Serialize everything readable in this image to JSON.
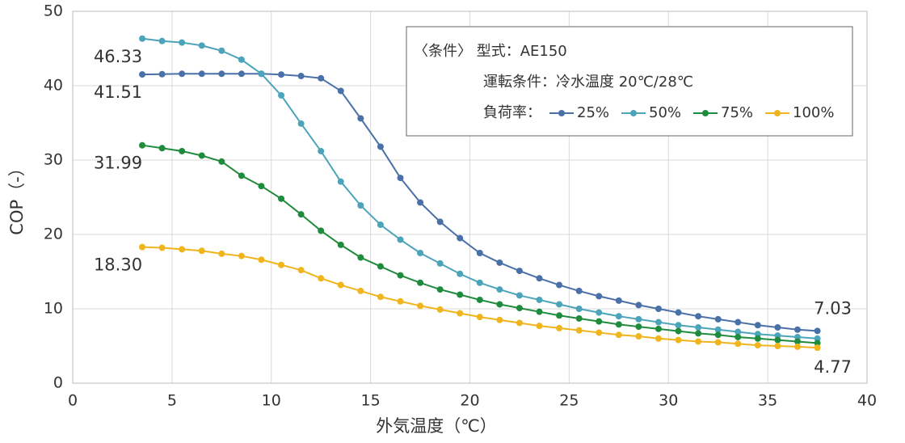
{
  "chart_data": {
    "type": "line",
    "x_label": "外気温度（℃）",
    "y_label": "COP（-）",
    "xlim": [
      0,
      40
    ],
    "xticks": [
      0,
      5,
      10,
      15,
      20,
      25,
      30,
      35,
      40
    ],
    "ylim": [
      0,
      50
    ],
    "yticks": [
      0,
      10,
      20,
      30,
      40,
      50
    ],
    "grid": true,
    "conditions": [
      "〈条件〉 型式：AE150",
      "運転条件：冷水温度 20℃/28℃",
      "負荷率："
    ],
    "x": [
      3.5,
      4.5,
      5.5,
      6.5,
      7.5,
      8.5,
      9.5,
      10.5,
      11.5,
      12.5,
      13.5,
      14.5,
      15.5,
      16.5,
      17.5,
      18.5,
      19.5,
      20.5,
      21.5,
      22.5,
      23.5,
      24.5,
      25.5,
      26.5,
      27.5,
      28.5,
      29.5,
      30.5,
      31.5,
      32.5,
      33.5,
      34.5,
      35.5,
      36.5,
      37.5
    ],
    "series": [
      {
        "name": "25%",
        "color": "#4a70a8",
        "values": [
          41.51,
          41.55,
          41.6,
          41.6,
          41.6,
          41.6,
          41.6,
          41.5,
          41.3,
          41.0,
          39.3,
          35.6,
          31.8,
          27.6,
          24.3,
          21.7,
          19.5,
          17.5,
          16.2,
          15.1,
          14.1,
          13.2,
          12.4,
          11.7,
          11.1,
          10.5,
          10.0,
          9.5,
          9.0,
          8.6,
          8.2,
          7.8,
          7.5,
          7.2,
          7.03
        ],
        "value_labels": [
          "41.51",
          null,
          null,
          null,
          null,
          null,
          null,
          null,
          null,
          null,
          null,
          null,
          null,
          null,
          null,
          null,
          null,
          null,
          null,
          null,
          null,
          null,
          null,
          null,
          null,
          null,
          null,
          null,
          null,
          null,
          null,
          null,
          null,
          null,
          "7.03"
        ]
      },
      {
        "name": "50%",
        "color": "#4ba4b9",
        "values": [
          46.33,
          46.0,
          45.8,
          45.4,
          44.7,
          43.5,
          41.6,
          38.7,
          34.9,
          31.2,
          27.1,
          23.9,
          21.3,
          19.3,
          17.5,
          16.1,
          14.7,
          13.5,
          12.6,
          11.8,
          11.2,
          10.6,
          10.0,
          9.5,
          9.0,
          8.6,
          8.2,
          7.8,
          7.5,
          7.2,
          6.9,
          6.6,
          6.4,
          6.2,
          6.0
        ],
        "value_labels": [
          "46.33",
          null,
          null,
          null,
          null,
          null,
          null,
          null,
          null,
          null,
          null,
          null,
          null,
          null,
          null,
          null,
          null,
          null,
          null,
          null,
          null,
          null,
          null,
          null,
          null,
          null,
          null,
          null,
          null,
          null,
          null,
          null,
          null,
          null,
          null
        ]
      },
      {
        "name": "75%",
        "color": "#1f8b3d",
        "values": [
          31.99,
          31.6,
          31.2,
          30.6,
          29.8,
          27.9,
          26.5,
          24.8,
          22.7,
          20.5,
          18.6,
          16.9,
          15.7,
          14.5,
          13.5,
          12.6,
          11.9,
          11.2,
          10.6,
          10.1,
          9.6,
          9.1,
          8.7,
          8.3,
          7.9,
          7.6,
          7.3,
          7.0,
          6.7,
          6.5,
          6.2,
          6.0,
          5.8,
          5.6,
          5.4
        ],
        "value_labels": [
          "31.99",
          null,
          null,
          null,
          null,
          null,
          null,
          null,
          null,
          null,
          null,
          null,
          null,
          null,
          null,
          null,
          null,
          null,
          null,
          null,
          null,
          null,
          null,
          null,
          null,
          null,
          null,
          null,
          null,
          null,
          null,
          null,
          null,
          null,
          null
        ]
      },
      {
        "name": "100%",
        "color": "#f0b51d",
        "values": [
          18.3,
          18.2,
          18.0,
          17.8,
          17.4,
          17.1,
          16.6,
          15.9,
          15.2,
          14.1,
          13.2,
          12.4,
          11.6,
          11.0,
          10.4,
          9.9,
          9.4,
          8.9,
          8.5,
          8.1,
          7.7,
          7.4,
          7.1,
          6.8,
          6.5,
          6.3,
          6.0,
          5.8,
          5.6,
          5.5,
          5.3,
          5.1,
          5.0,
          4.9,
          4.77
        ],
        "value_labels": [
          "18.30",
          null,
          null,
          null,
          null,
          null,
          null,
          null,
          null,
          null,
          null,
          null,
          null,
          null,
          null,
          null,
          null,
          null,
          null,
          null,
          null,
          null,
          null,
          null,
          null,
          null,
          null,
          null,
          null,
          null,
          null,
          null,
          null,
          null,
          "4.77"
        ]
      }
    ]
  }
}
